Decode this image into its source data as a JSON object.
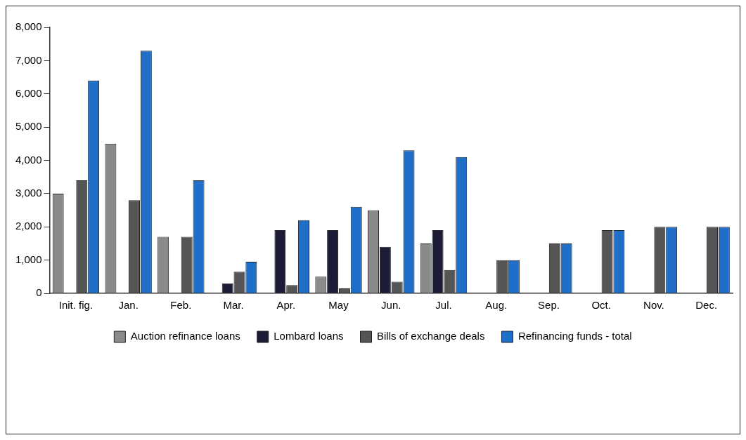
{
  "chart_data": {
    "type": "bar",
    "categories": [
      "Init. fig.",
      "Jan.",
      "Feb.",
      "Mar.",
      "Apr.",
      "May",
      "Jun.",
      "Jul.",
      "Aug.",
      "Sep.",
      "Oct.",
      "Nov.",
      "Dec."
    ],
    "series": [
      {
        "name": "Auction refinance loans",
        "color": "#8a8a8a",
        "values": [
          3000,
          4500,
          1700,
          0,
          0,
          500,
          2500,
          1500,
          0,
          0,
          0,
          0,
          0
        ]
      },
      {
        "name": "Lombard loans",
        "color": "#1c1c36",
        "values": [
          0,
          0,
          0,
          300,
          1900,
          1900,
          1400,
          1900,
          0,
          0,
          0,
          0,
          0
        ]
      },
      {
        "name": "Bills of exchange deals",
        "color": "#555555",
        "values": [
          3400,
          2800,
          1700,
          650,
          250,
          150,
          350,
          700,
          1000,
          1500,
          1900,
          2000,
          2000
        ]
      },
      {
        "name": "Refinancing funds - total",
        "color": "#1f6fc8",
        "values": [
          6400,
          7300,
          3400,
          950,
          2200,
          2600,
          4300,
          4100,
          1000,
          1500,
          1900,
          2000,
          2000
        ]
      }
    ],
    "ylim": [
      0,
      8000
    ],
    "yticks": [
      0,
      {
        "value": 1000,
        "label": "1,000"
      },
      {
        "value": 2000,
        "label": "2,000"
      },
      {
        "value": 3000,
        "label": "3,000"
      },
      {
        "value": 4000,
        "label": "4,000"
      },
      {
        "value": 5000,
        "label": "5,000"
      },
      {
        "value": 6000,
        "label": "6,000"
      },
      {
        "value": 7000,
        "label": "7,000"
      },
      {
        "value": 8000,
        "label": "8,000"
      }
    ],
    "grid": false,
    "legend": "bottom"
  }
}
